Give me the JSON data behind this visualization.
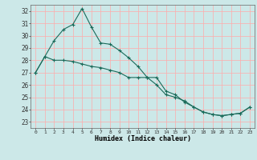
{
  "xlabel": "Humidex (Indice chaleur)",
  "bg_color": "#cce8e8",
  "grid_color": "#ffaaaa",
  "line_color": "#1a6b5a",
  "xlim": [
    -0.5,
    23.5
  ],
  "ylim": [
    22.5,
    32.5
  ],
  "yticks": [
    23,
    24,
    25,
    26,
    27,
    28,
    29,
    30,
    31,
    32
  ],
  "xticks": [
    0,
    1,
    2,
    3,
    4,
    5,
    6,
    7,
    8,
    9,
    10,
    11,
    12,
    13,
    14,
    15,
    16,
    17,
    18,
    19,
    20,
    21,
    22,
    23
  ],
  "line1_x": [
    0,
    1,
    2,
    3,
    4,
    5,
    6,
    7,
    8,
    9,
    10,
    11,
    12,
    13,
    14,
    15,
    16,
    17,
    18,
    19,
    20,
    21,
    22,
    23
  ],
  "line1_y": [
    27.0,
    28.3,
    29.6,
    30.5,
    30.9,
    32.2,
    30.7,
    29.4,
    29.3,
    28.8,
    28.2,
    27.5,
    26.6,
    26.0,
    25.2,
    25.0,
    24.7,
    24.2,
    23.8,
    23.6,
    23.5,
    23.6,
    23.7,
    24.2
  ],
  "line2_x": [
    0,
    1,
    2,
    3,
    4,
    5,
    6,
    7,
    8,
    9,
    10,
    11,
    12,
    13,
    14,
    15,
    16,
    17,
    18,
    19,
    20,
    21,
    22,
    23
  ],
  "line2_y": [
    27.0,
    28.3,
    28.0,
    28.0,
    27.9,
    27.7,
    27.5,
    27.4,
    27.2,
    27.0,
    26.6,
    26.6,
    26.6,
    26.6,
    25.5,
    25.2,
    24.6,
    24.2,
    23.8,
    23.6,
    23.5,
    23.6,
    23.7,
    24.2
  ]
}
